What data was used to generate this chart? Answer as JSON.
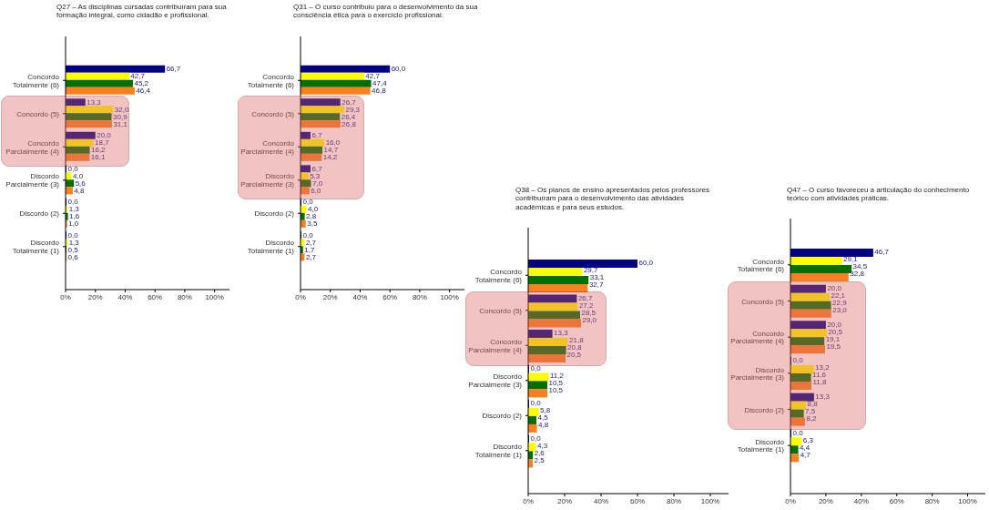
{
  "chart_data": [
    {
      "type": "bar",
      "orientation": "horizontal",
      "title": "Q27 – As disciplinas cursadas contribuíram para sua formação integral, como cidadão e profissional.",
      "categories": [
        "Concordo Totalmente (6)",
        "Concordo (5)",
        "Concordo Parcialmente (4)",
        "Discordo Parcialmente (3)",
        "Discordo (2)",
        "Discordo Totalmente (1)"
      ],
      "series": [
        {
          "color": "#000080",
          "values": [
            66.7,
            13.3,
            20.0,
            0.0,
            0.0,
            0.0
          ],
          "value_labels": [
            "66,7",
            "13,3",
            "20,0",
            "0,0",
            "0,0",
            "0,0"
          ]
        },
        {
          "color": "#ffff00",
          "values": [
            42.7,
            32.0,
            18.7,
            4.0,
            1.3,
            1.3
          ],
          "value_labels": [
            "42,7",
            "32,0",
            "18,7",
            "4,0",
            "1,3",
            "1,3"
          ]
        },
        {
          "color": "#006e00",
          "values": [
            45.2,
            30.9,
            16.2,
            5.6,
            1.6,
            0.5
          ],
          "value_labels": [
            "45,2",
            "30,9",
            "16,2",
            "5,6",
            "1,6",
            "0,5"
          ]
        },
        {
          "color": "#f88020",
          "values": [
            46.4,
            31.1,
            16.1,
            4.8,
            1.0,
            0.6
          ],
          "value_labels": [
            "46,4",
            "31,1",
            "16,1",
            "4,8",
            "1,0",
            "0,6"
          ]
        }
      ],
      "xlim": [
        0,
        110
      ],
      "xticks": [
        {
          "value": 0,
          "label": "0%"
        },
        {
          "value": 20,
          "label": "20%"
        },
        {
          "value": 40,
          "label": "40%"
        },
        {
          "value": 60,
          "label": "60%"
        },
        {
          "value": 80,
          "label": "80%"
        },
        {
          "value": 100,
          "label": "100%"
        }
      ],
      "bands": [
        {
          "axis": "y",
          "from": "Concordo (5)",
          "to": "Concordo Parcialmente (4)",
          "color": "#dc6464"
        }
      ]
    },
    {
      "type": "bar",
      "orientation": "horizontal",
      "title": "Q31 – O curso contribuiu para o desenvolvimento da sua consciência ética para o exercício profissional.",
      "categories": [
        "Concordo Totalmente (6)",
        "Concordo (5)",
        "Concordo Parcialmente (4)",
        "Discordo Parcialmente (3)",
        "Discordo (2)",
        "Discordo Totalmente (1)"
      ],
      "series": [
        {
          "color": "#000080",
          "values": [
            60.0,
            26.7,
            6.7,
            6.7,
            0.0,
            0.0
          ],
          "value_labels": [
            "60,0",
            "26,7",
            "6,7",
            "6,7",
            "0,0",
            "0,0"
          ]
        },
        {
          "color": "#ffff00",
          "values": [
            42.7,
            29.3,
            16.0,
            5.3,
            4.0,
            2.7
          ],
          "value_labels": [
            "42,7",
            "29,3",
            "16,0",
            "5,3",
            "4,0",
            "2,7"
          ]
        },
        {
          "color": "#006e00",
          "values": [
            47.4,
            26.4,
            14.7,
            7.0,
            2.8,
            1.7
          ],
          "value_labels": [
            "47,4",
            "26,4",
            "14,7",
            "7,0",
            "2,8",
            "1,7"
          ]
        },
        {
          "color": "#f88020",
          "values": [
            46.8,
            26.8,
            14.2,
            6.0,
            3.5,
            2.7
          ],
          "value_labels": [
            "46,8",
            "26,8",
            "14,2",
            "6,0",
            "3,5",
            "2,7"
          ]
        }
      ],
      "xlim": [
        0,
        110
      ],
      "xticks": [
        {
          "value": 0,
          "label": "0%"
        },
        {
          "value": 20,
          "label": "20%"
        },
        {
          "value": 40,
          "label": "40%"
        },
        {
          "value": 60,
          "label": "60%"
        },
        {
          "value": 80,
          "label": "80%"
        },
        {
          "value": 100,
          "label": "100%"
        }
      ],
      "bands": [
        {
          "axis": "y",
          "from": "Concordo (5)",
          "to": "Discordo Parcialmente (3)",
          "color": "#dc6464"
        }
      ]
    },
    {
      "type": "bar",
      "orientation": "horizontal",
      "title": "Q38 – Os planos de ensino apresentados pelos professores contribuíram para o desenvolvimento das atividades acadêmicas e para seus estudos.",
      "categories": [
        "Concordo Totalmente (6)",
        "Concordo (5)",
        "Concordo Parcialmente (4)",
        "Discordo Parcialmente (3)",
        "Discordo (2)",
        "Discordo Totalmente (1)"
      ],
      "series": [
        {
          "color": "#000080",
          "values": [
            60.0,
            26.7,
            13.3,
            0.0,
            0.0,
            0.0
          ],
          "value_labels": [
            "60,0",
            "26,7",
            "13,3",
            "0,0",
            "0,0",
            "0,0"
          ]
        },
        {
          "color": "#ffff00",
          "values": [
            29.7,
            27.2,
            21.8,
            11.2,
            5.8,
            4.3
          ],
          "value_labels": [
            "29,7",
            "27,2",
            "21,8",
            "11,2",
            "5,8",
            "4,3"
          ]
        },
        {
          "color": "#006e00",
          "values": [
            33.1,
            28.5,
            20.8,
            10.5,
            4.5,
            2.6
          ],
          "value_labels": [
            "33,1",
            "28,5",
            "20,8",
            "10,5",
            "4,5",
            "2,6"
          ]
        },
        {
          "color": "#f88020",
          "values": [
            32.7,
            29.0,
            20.5,
            10.5,
            4.8,
            2.5
          ],
          "value_labels": [
            "32,7",
            "29,0",
            "20,5",
            "10,5",
            "4,8",
            "2,5"
          ]
        }
      ],
      "xlim": [
        0,
        110
      ],
      "xticks": [
        {
          "value": 0,
          "label": "0%"
        },
        {
          "value": 20,
          "label": "20%"
        },
        {
          "value": 40,
          "label": "40%"
        },
        {
          "value": 60,
          "label": "60%"
        },
        {
          "value": 80,
          "label": "80%"
        },
        {
          "value": 100,
          "label": "100%"
        }
      ],
      "bands": [
        {
          "axis": "y",
          "from": "Concordo (5)",
          "to": "Concordo Parcialmente (4)",
          "color": "#dc6464"
        }
      ]
    },
    {
      "type": "bar",
      "orientation": "horizontal",
      "title": "Q47 – O curso favoreceu a articulação do conhecimento teórico com atividades práticas.",
      "categories": [
        "Concordo Totalmente (6)",
        "Concordo (5)",
        "Concordo Parcialmente (4)",
        "Discordo Parcialmente (3)",
        "Discordo (2)",
        "Discordo Totalmente (1)"
      ],
      "series": [
        {
          "color": "#000080",
          "values": [
            46.7,
            20.0,
            20.0,
            0.0,
            13.3,
            0.0
          ],
          "value_labels": [
            "46,7",
            "20,0",
            "20,0",
            "0,0",
            "13,3",
            "0,0"
          ]
        },
        {
          "color": "#ffff00",
          "values": [
            29.1,
            22.1,
            20.5,
            13.2,
            8.8,
            6.3
          ],
          "value_labels": [
            "29,1",
            "22,1",
            "20,5",
            "13,2",
            "8,8",
            "6,3"
          ]
        },
        {
          "color": "#006e00",
          "values": [
            34.5,
            22.9,
            19.1,
            11.6,
            7.5,
            4.4
          ],
          "value_labels": [
            "34,5",
            "22,9",
            "19,1",
            "11,6",
            "7,5",
            "4,4"
          ]
        },
        {
          "color": "#f88020",
          "values": [
            32.8,
            23.0,
            19.5,
            11.8,
            8.2,
            4.7
          ],
          "value_labels": [
            "32,8",
            "23,0",
            "19,5",
            "11,8",
            "8,2",
            "4,7"
          ]
        }
      ],
      "xlim": [
        0,
        110
      ],
      "xticks": [
        {
          "value": 0,
          "label": "0%"
        },
        {
          "value": 20,
          "label": "20%"
        },
        {
          "value": 40,
          "label": "40%"
        },
        {
          "value": 60,
          "label": "60%"
        },
        {
          "value": 80,
          "label": "80%"
        },
        {
          "value": 100,
          "label": "100%"
        }
      ],
      "bands": [
        {
          "axis": "y",
          "from": "Concordo (5)",
          "to": "Discordo (2)",
          "color": "#dc6464"
        }
      ]
    }
  ]
}
